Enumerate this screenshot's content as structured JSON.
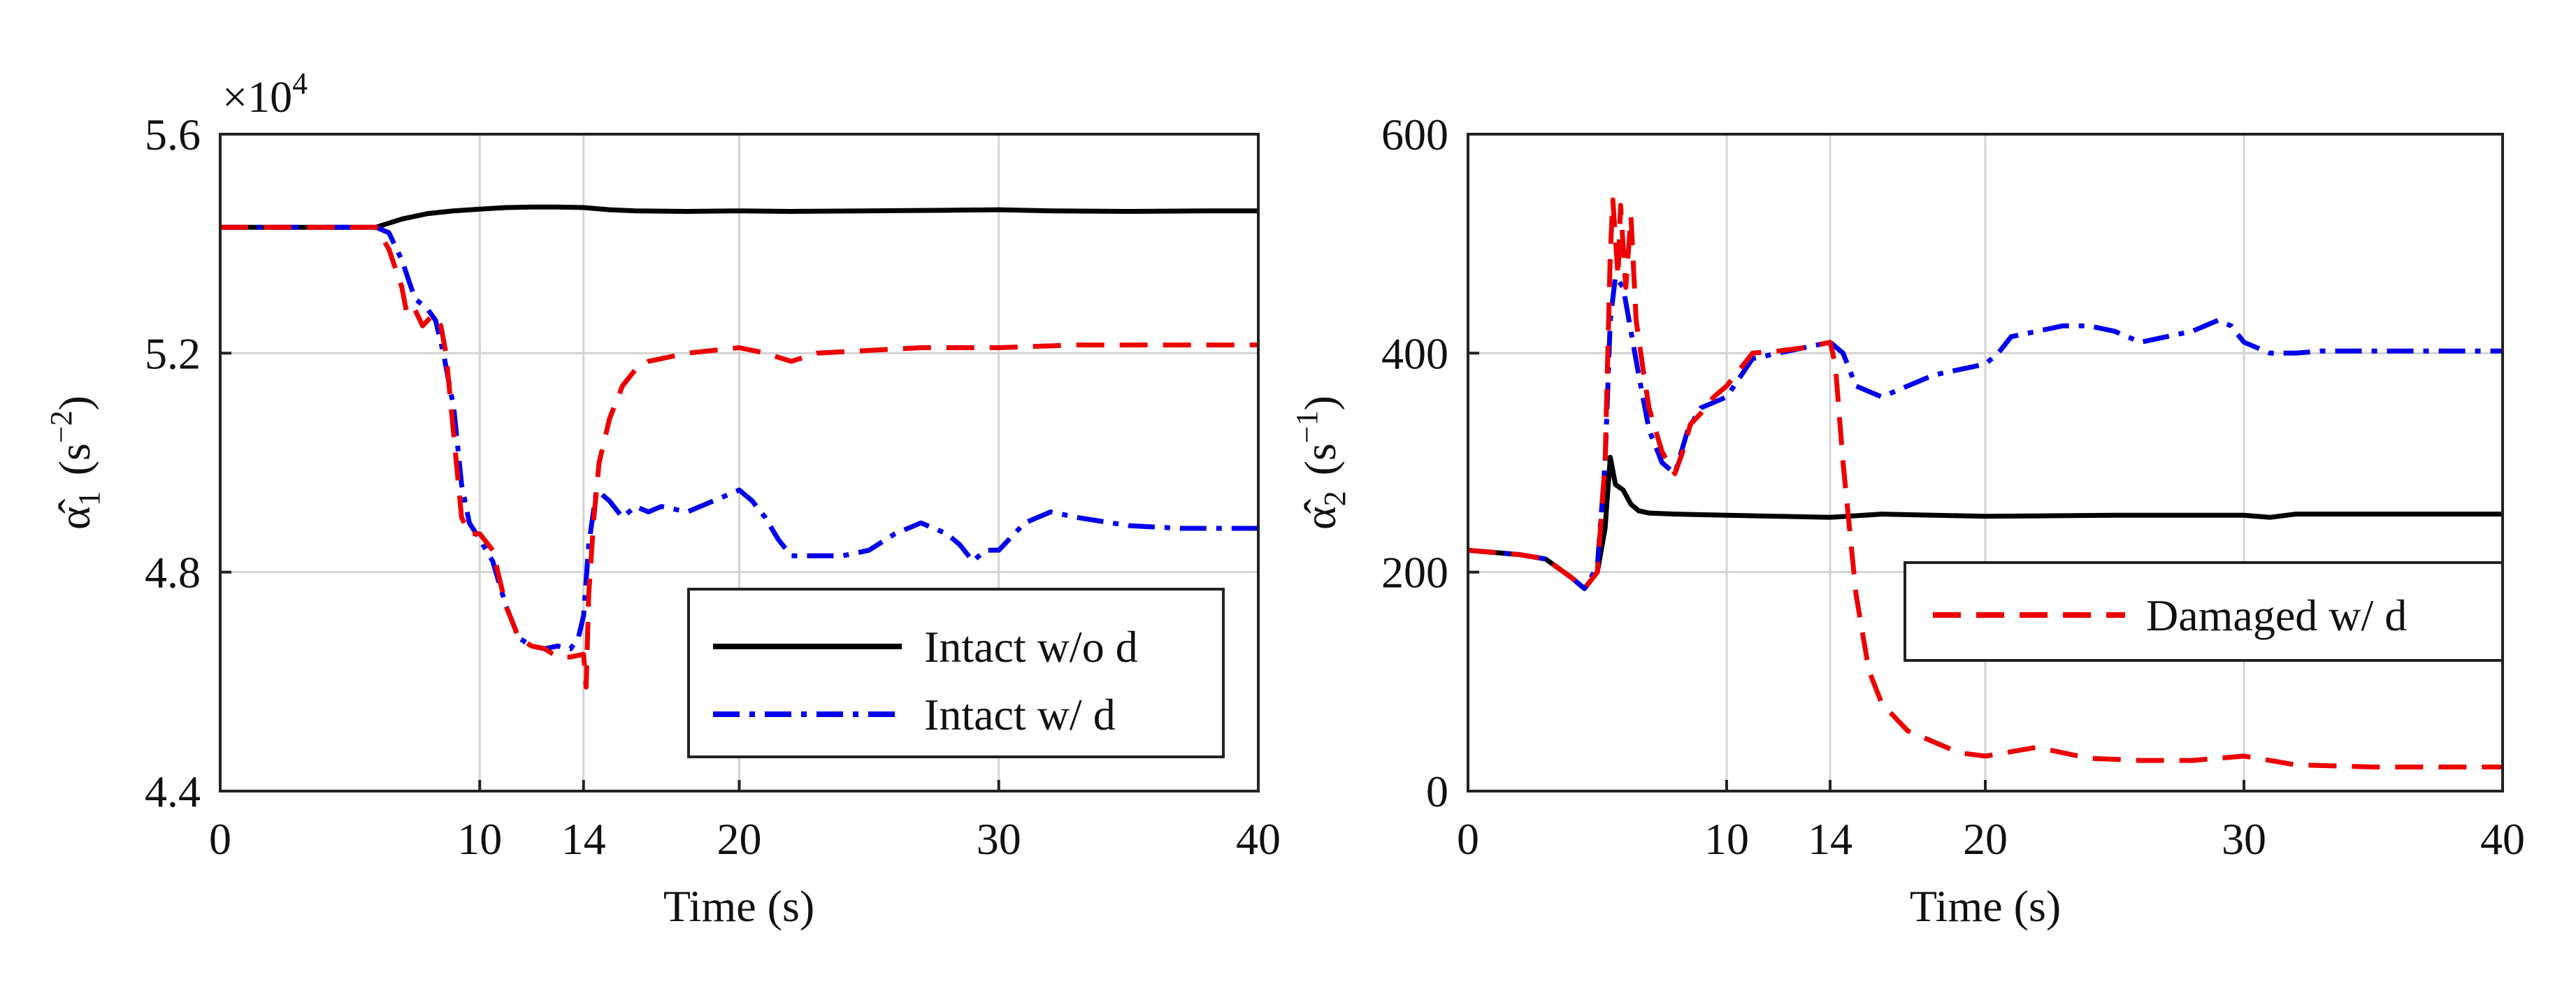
{
  "chart_data": [
    {
      "type": "line",
      "panel": "left",
      "xlabel": "Time (s)",
      "ylabel": "α̂1 (s−2)",
      "ylabel_symbol": "α̂",
      "ylabel_sub": "1",
      "ylabel_unit": "(s",
      "ylabel_exp": "−2",
      "ylabel_close": ")",
      "scale_base": "×10",
      "scale_exp": "4",
      "xlim": [
        0,
        40
      ],
      "ylim": [
        4.4,
        5.6
      ],
      "xticks": [
        0,
        10,
        14,
        20,
        30,
        40
      ],
      "xtick_labels": [
        "0",
        "10",
        "14",
        "20",
        "30",
        "40"
      ],
      "yticks": [
        4.4,
        4.8,
        5.2,
        5.6
      ],
      "ytick_labels": [
        "4.4",
        "4.8",
        "5.2",
        "5.6"
      ],
      "grid": true,
      "legend_position": "bottom-right",
      "series": [
        {
          "name": "Intact w/o d",
          "color": "#000000",
          "style": "solid",
          "in_legend": true,
          "x": [
            0,
            2,
            4,
            6,
            7,
            8,
            9,
            10,
            11,
            12,
            13,
            14,
            15,
            16,
            18,
            20,
            22,
            25,
            28,
            30,
            32,
            35,
            38,
            40
          ],
          "y": [
            5.43,
            5.43,
            5.43,
            5.43,
            5.445,
            5.455,
            5.46,
            5.463,
            5.466,
            5.467,
            5.467,
            5.466,
            5.462,
            5.46,
            5.459,
            5.46,
            5.459,
            5.46,
            5.461,
            5.462,
            5.46,
            5.459,
            5.46,
            5.46
          ]
        },
        {
          "name": "Intact w/ d",
          "color": "#0000ee",
          "style": "dashdot",
          "in_legend": true,
          "x": [
            0,
            4,
            6,
            6.5,
            7,
            7.5,
            8,
            8.3,
            8.6,
            9,
            9.3,
            9.6,
            10,
            10.5,
            11,
            11.5,
            12,
            12.5,
            13,
            13.5,
            13.8,
            14,
            14.2,
            14.5,
            15,
            15.5,
            16,
            16.5,
            17,
            18,
            19,
            20,
            20.5,
            21,
            21.5,
            22,
            23,
            24,
            25,
            26,
            27,
            28,
            28.5,
            29,
            29.5,
            30,
            31,
            32,
            33,
            35,
            37,
            40
          ],
          "y": [
            5.43,
            5.43,
            5.43,
            5.42,
            5.37,
            5.3,
            5.28,
            5.26,
            5.2,
            5.1,
            4.96,
            4.89,
            4.86,
            4.82,
            4.74,
            4.68,
            4.665,
            4.66,
            4.665,
            4.66,
            4.68,
            4.72,
            4.85,
            4.95,
            4.93,
            4.9,
            4.92,
            4.91,
            4.92,
            4.91,
            4.93,
            4.95,
            4.93,
            4.9,
            4.86,
            4.83,
            4.83,
            4.83,
            4.84,
            4.87,
            4.89,
            4.87,
            4.85,
            4.82,
            4.84,
            4.84,
            4.89,
            4.91,
            4.9,
            4.885,
            4.88,
            4.88
          ]
        },
        {
          "name": "Damaged w/ d",
          "color": "#ee0000",
          "style": "dashed",
          "in_legend": false,
          "x": [
            0,
            4,
            6,
            6.5,
            7,
            7.2,
            7.5,
            7.8,
            8,
            8.2,
            8.5,
            8.7,
            9,
            9.3,
            9.6,
            10,
            10.5,
            11,
            11.5,
            12,
            12.5,
            13,
            13.5,
            14,
            14.1,
            14.2,
            14.4,
            14.6,
            15,
            15.5,
            16,
            16.5,
            17,
            18,
            19,
            20,
            21,
            22,
            23,
            25,
            27,
            30,
            33,
            35,
            38,
            40
          ],
          "y": [
            5.43,
            5.43,
            5.43,
            5.39,
            5.32,
            5.27,
            5.28,
            5.25,
            5.26,
            5.27,
            5.25,
            5.2,
            5.05,
            4.9,
            4.87,
            4.87,
            4.84,
            4.74,
            4.68,
            4.665,
            4.66,
            4.645,
            4.645,
            4.65,
            4.59,
            4.76,
            4.9,
            5.0,
            5.08,
            5.14,
            5.17,
            5.185,
            5.19,
            5.2,
            5.205,
            5.21,
            5.2,
            5.185,
            5.2,
            5.205,
            5.21,
            5.21,
            5.215,
            5.215,
            5.215,
            5.215
          ]
        }
      ]
    },
    {
      "type": "line",
      "panel": "right",
      "xlabel": "Time (s)",
      "ylabel": "α̂2 (s−1)",
      "ylabel_symbol": "α̂",
      "ylabel_sub": "2",
      "ylabel_unit": "(s",
      "ylabel_exp": "−1",
      "ylabel_close": ")",
      "xlim": [
        0,
        40
      ],
      "ylim": [
        0,
        600
      ],
      "xticks": [
        0,
        10,
        14,
        20,
        30,
        40
      ],
      "xtick_labels": [
        "0",
        "10",
        "14",
        "20",
        "30",
        "40"
      ],
      "yticks": [
        0,
        200,
        400,
        600
      ],
      "ytick_labels": [
        "0",
        "200",
        "400",
        "600"
      ],
      "grid": true,
      "legend_position": "center-right",
      "series": [
        {
          "name": "Intact w/o d",
          "color": "#000000",
          "style": "solid",
          "in_legend": false,
          "x": [
            0,
            1,
            2,
            3,
            4,
            4.5,
            5,
            5.3,
            5.5,
            5.7,
            6,
            6.3,
            6.6,
            7,
            8,
            10,
            12,
            14,
            16,
            18,
            20,
            25,
            30,
            31,
            32,
            35,
            38,
            40
          ],
          "y": [
            220,
            218,
            216,
            212,
            195,
            185,
            200,
            240,
            305,
            280,
            275,
            262,
            256,
            254,
            253,
            252,
            251,
            250,
            253,
            252,
            251,
            252,
            252,
            250,
            253,
            253,
            253,
            253
          ]
        },
        {
          "name": "Intact w/ d",
          "color": "#0000ee",
          "style": "dashdot",
          "in_legend": false,
          "x": [
            0,
            1,
            2,
            3,
            4,
            4.5,
            5,
            5.3,
            5.5,
            5.7,
            6,
            6.3,
            6.6,
            7,
            7.5,
            8,
            8.5,
            9,
            9.5,
            10,
            11,
            12,
            13,
            14,
            14.5,
            15,
            15.5,
            16,
            17,
            18,
            19,
            20,
            20.5,
            21,
            22,
            23,
            24,
            25,
            26,
            27,
            28,
            29,
            29.5,
            30,
            31,
            32,
            33,
            35,
            38,
            40
          ],
          "y": [
            220,
            218,
            216,
            212,
            195,
            185,
            205,
            300,
            430,
            470,
            460,
            420,
            380,
            330,
            300,
            290,
            330,
            350,
            355,
            360,
            395,
            400,
            405,
            410,
            400,
            370,
            365,
            360,
            370,
            380,
            385,
            390,
            400,
            415,
            420,
            425,
            425,
            420,
            410,
            415,
            420,
            430,
            425,
            410,
            400,
            400,
            402,
            402,
            402,
            402
          ]
        },
        {
          "name": "Damaged w/ d",
          "color": "#ee0000",
          "style": "dashed",
          "in_legend": true,
          "x": [
            0,
            1,
            2,
            3,
            4,
            4.5,
            5,
            5.3,
            5.5,
            5.6,
            5.8,
            5.9,
            6.1,
            6.3,
            6.5,
            6.8,
            7,
            7.5,
            8,
            8.3,
            8.6,
            9,
            9.5,
            10,
            10.5,
            11,
            12,
            13,
            14,
            14.2,
            14.5,
            15,
            15.5,
            16,
            17,
            18,
            19,
            20,
            22,
            24,
            26,
            28,
            30,
            31,
            32,
            35,
            38,
            40
          ],
          "y": [
            220,
            218,
            216,
            212,
            195,
            185,
            200,
            300,
            490,
            540,
            470,
            535,
            460,
            525,
            430,
            380,
            350,
            310,
            290,
            310,
            335,
            345,
            360,
            370,
            385,
            400,
            402,
            405,
            410,
            390,
            300,
            180,
            110,
            80,
            55,
            45,
            35,
            32,
            40,
            30,
            28,
            28,
            32,
            28,
            24,
            22,
            22,
            22
          ]
        }
      ]
    }
  ],
  "legends": {
    "left": [
      {
        "label": "Intact w/o d",
        "color": "#000000",
        "style": "solid"
      },
      {
        "label": "Intact w/ d",
        "color": "#0000ee",
        "style": "dashdot"
      }
    ],
    "right": [
      {
        "label": "Damaged w/ d",
        "color": "#ee0000",
        "style": "dashed"
      }
    ]
  }
}
